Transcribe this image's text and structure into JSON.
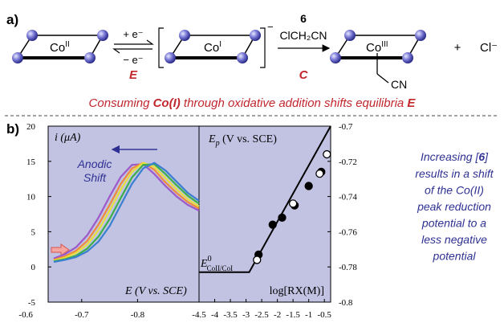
{
  "panel_a_label": "a)",
  "panel_b_label": "b)",
  "scheme": {
    "co2": "Co",
    "co2_ox": "II",
    "plus_e": "+ e⁻",
    "minus_e": "− e⁻",
    "step_e": "E",
    "co1": "Co",
    "co1_ox": "I",
    "charge": "−",
    "reagent_num": "6",
    "reagent": "ClCH₂CN",
    "step_c": "C",
    "co3": "Co",
    "co3_ox": "III",
    "cn": "CN",
    "plus": "+",
    "chloride": "Cl⁻"
  },
  "caption": [
    "Consuming ",
    "Co(I)",
    " through oxidative addition shifts equilibria ",
    "E"
  ],
  "side_note": {
    "first_line": [
      "Increasing [",
      "6",
      "]"
    ],
    "lines": [
      "results in a shift",
      "of the Co(II)",
      "peak reduction",
      "potential to a",
      "less negative",
      "potential"
    ]
  },
  "chart_data": [
    {
      "type": "line",
      "ylabel": "i (μA)",
      "xlabel": "E (V vs. SCE)",
      "annotation": [
        "Anodic",
        "Shift"
      ],
      "x": [
        -0.65,
        -0.67,
        -0.69,
        -0.71,
        -0.73,
        -0.75,
        -0.77,
        -0.79,
        -0.81,
        -0.83,
        -0.85,
        -0.87,
        -0.89,
        -0.91
      ],
      "series": [
        {
          "color": "#9b59c9",
          "values": [
            1.2,
            1.8,
            2.8,
            4.5,
            7,
            10,
            12.8,
            14.5,
            14.6,
            13.2,
            11.5,
            10,
            8.8,
            8
          ]
        },
        {
          "color": "#f08a3c",
          "values": [
            1.0,
            1.5,
            2.3,
            3.7,
            6,
            8.8,
            11.8,
            14,
            14.8,
            13.8,
            12,
            10.5,
            9.2,
            8.3
          ]
        },
        {
          "color": "#e8e03a",
          "values": [
            0.9,
            1.3,
            2.0,
            3.2,
            5.2,
            8,
            11,
            13.5,
            14.8,
            14.2,
            12.6,
            11,
            9.6,
            8.6
          ]
        },
        {
          "color": "#3cae4a",
          "values": [
            0.8,
            1.1,
            1.6,
            2.6,
            4.3,
            6.8,
            9.8,
            12.7,
            14.5,
            14.6,
            13.2,
            11.6,
            10.1,
            9
          ]
        },
        {
          "color": "#3a7fd0",
          "values": [
            0.7,
            1.0,
            1.4,
            2.2,
            3.6,
            5.8,
            8.8,
            11.8,
            14,
            14.8,
            13.7,
            12.1,
            10.5,
            9.4
          ]
        }
      ],
      "xlim": [
        -0.64,
        -0.91
      ],
      "xticks": [
        -0.6,
        -0.7,
        -0.8
      ],
      "ylim": [
        -5,
        20
      ],
      "yticks": [
        -5,
        0,
        5,
        10,
        15,
        20
      ]
    },
    {
      "type": "scatter",
      "ylabel": [
        "E",
        "p",
        " (V vs. SCE)"
      ],
      "xlabel": "log[RX(M)]",
      "e0_label": [
        "E",
        "0",
        "CoII/CoI"
      ],
      "series": [
        {
          "marker": "filled",
          "color": "#000000",
          "x": [
            -2.6,
            -2.15,
            -1.85,
            -1.45,
            -1.0,
            -0.6
          ],
          "values": [
            -0.773,
            -0.756,
            -0.752,
            -0.745,
            -0.734,
            -0.726
          ]
        },
        {
          "marker": "open",
          "color": "#000000",
          "x": [
            -2.65,
            -1.5,
            -0.65,
            -0.42
          ],
          "values": [
            -0.776,
            -0.744,
            -0.727,
            -0.716
          ]
        },
        {
          "marker": "none",
          "color": "#000000",
          "x": [
            -4.5,
            -2.9,
            -0.3
          ],
          "values": [
            -0.783,
            -0.783,
            -0.7
          ]
        }
      ],
      "xlim": [
        -4.5,
        -0.3
      ],
      "xticks": [
        -4.5,
        -4,
        -3.5,
        -3,
        -2.5,
        -2,
        -1.5,
        -1,
        -0.5
      ],
      "y2lim": [
        -0.8,
        -0.7
      ],
      "y2ticks": [
        -0.8,
        -0.78,
        -0.76,
        -0.74,
        -0.72,
        -0.7
      ]
    }
  ]
}
